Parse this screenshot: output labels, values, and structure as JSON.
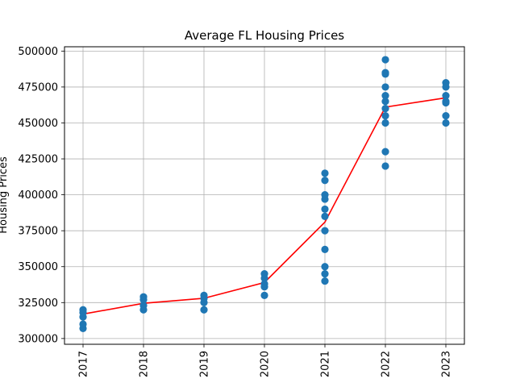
{
  "chart_data": {
    "type": "scatter",
    "title": "Average FL Housing Prices",
    "xlabel": "",
    "ylabel": "Housing Prices",
    "categories": [
      "2017",
      "2018",
      "2019",
      "2020",
      "2021",
      "2022",
      "2023"
    ],
    "ylim": [
      296000,
      503000
    ],
    "yticks": [
      300000,
      325000,
      350000,
      375000,
      400000,
      425000,
      450000,
      475000,
      500000
    ],
    "grid": true,
    "colors": {
      "scatter": "#1f77b4",
      "line": "#ff0000",
      "grid": "#b0b0b0"
    },
    "series": [
      {
        "type": "scatter",
        "points": [
          [
            "2017",
            307000
          ],
          [
            "2017",
            310000
          ],
          [
            "2017",
            315000
          ],
          [
            "2017",
            318000
          ],
          [
            "2017",
            320000
          ],
          [
            "2018",
            320000
          ],
          [
            "2018",
            323000
          ],
          [
            "2018",
            327000
          ],
          [
            "2018",
            329000
          ],
          [
            "2019",
            320000
          ],
          [
            "2019",
            325000
          ],
          [
            "2019",
            328000
          ],
          [
            "2019",
            330000
          ],
          [
            "2020",
            330000
          ],
          [
            "2020",
            336000
          ],
          [
            "2020",
            338000
          ],
          [
            "2020",
            342000
          ],
          [
            "2020",
            345000
          ],
          [
            "2021",
            340000
          ],
          [
            "2021",
            345000
          ],
          [
            "2021",
            350000
          ],
          [
            "2021",
            362000
          ],
          [
            "2021",
            375000
          ],
          [
            "2021",
            385000
          ],
          [
            "2021",
            390000
          ],
          [
            "2021",
            397000
          ],
          [
            "2021",
            400000
          ],
          [
            "2021",
            410000
          ],
          [
            "2021",
            415000
          ],
          [
            "2022",
            420000
          ],
          [
            "2022",
            430000
          ],
          [
            "2022",
            450000
          ],
          [
            "2022",
            455000
          ],
          [
            "2022",
            460000
          ],
          [
            "2022",
            465000
          ],
          [
            "2022",
            469000
          ],
          [
            "2022",
            475000
          ],
          [
            "2022",
            484000
          ],
          [
            "2022",
            485000
          ],
          [
            "2022",
            494000
          ],
          [
            "2023",
            450000
          ],
          [
            "2023",
            455000
          ],
          [
            "2023",
            464000
          ],
          [
            "2023",
            465000
          ],
          [
            "2023",
            469000
          ],
          [
            "2023",
            475000
          ],
          [
            "2023",
            478000
          ]
        ]
      },
      {
        "type": "line",
        "x": [
          "2017",
          "2018",
          "2019",
          "2020",
          "2021",
          "2022",
          "2023"
        ],
        "values": [
          317000,
          324500,
          328000,
          339000,
          381000,
          461000,
          467500
        ]
      }
    ]
  }
}
